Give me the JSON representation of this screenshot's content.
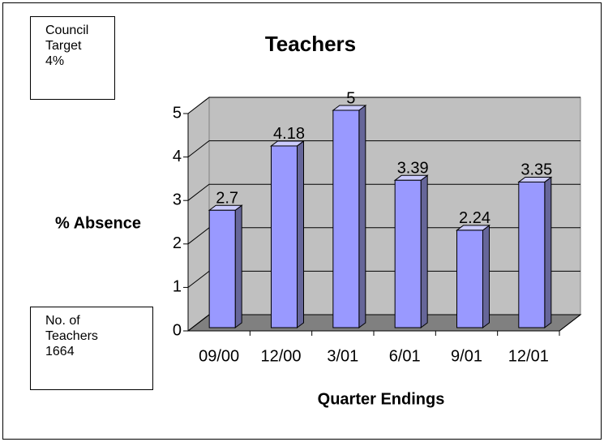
{
  "chart_data": {
    "type": "bar3d",
    "title": "Teachers",
    "y_label": "% Absence",
    "x_label": "Quarter Endings",
    "categories": [
      "09/00",
      "12/00",
      "3/01",
      "6/01",
      "9/01",
      "12/01"
    ],
    "values": [
      2.7,
      4.18,
      5,
      3.39,
      2.24,
      3.35
    ],
    "color": "#9999ff",
    "ylim": [
      0,
      5
    ],
    "yticks": [
      0,
      1,
      2,
      3,
      4,
      5
    ],
    "grid": true,
    "annotations": [
      "Council Target 4%",
      "No. of Teachers 1664"
    ]
  }
}
